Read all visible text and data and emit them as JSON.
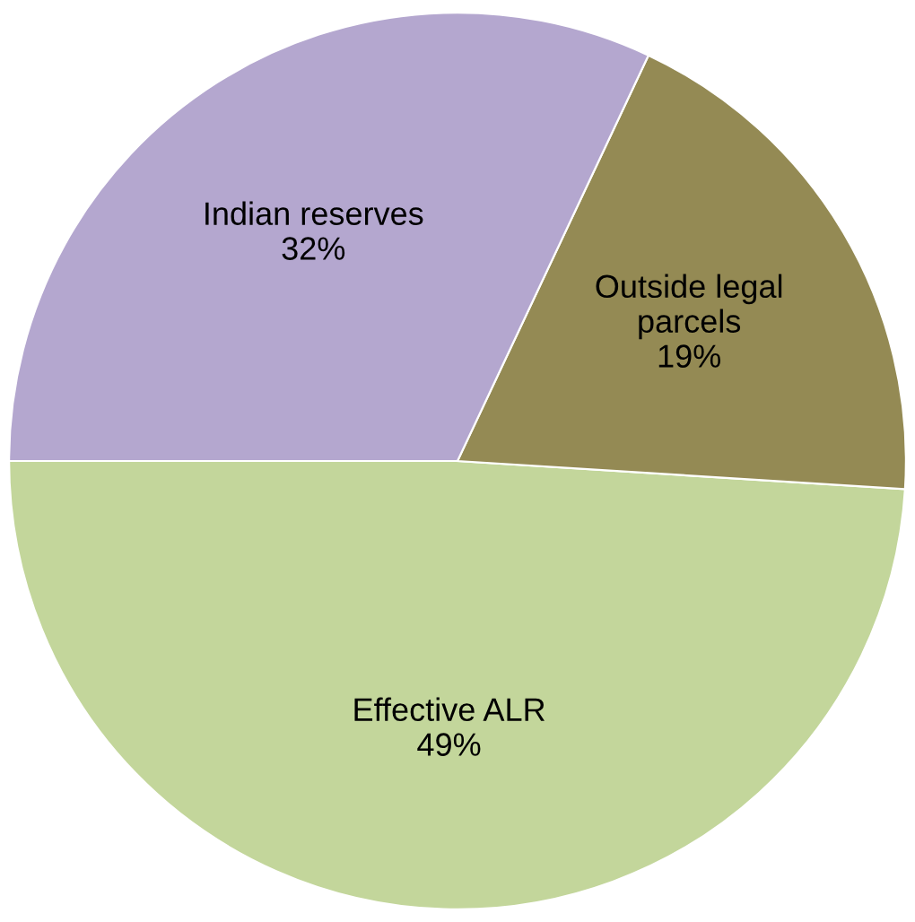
{
  "chart_data": {
    "type": "pie",
    "categories": [
      "Effective ALR",
      "Outside legal\nparcels",
      "Indian reserves"
    ],
    "values": [
      49,
      19,
      32
    ],
    "colors": [
      "#c3d69b",
      "#948a54",
      "#b4a7cf"
    ],
    "value_labels": [
      "49%",
      "19%",
      "32%"
    ],
    "legend": false
  }
}
